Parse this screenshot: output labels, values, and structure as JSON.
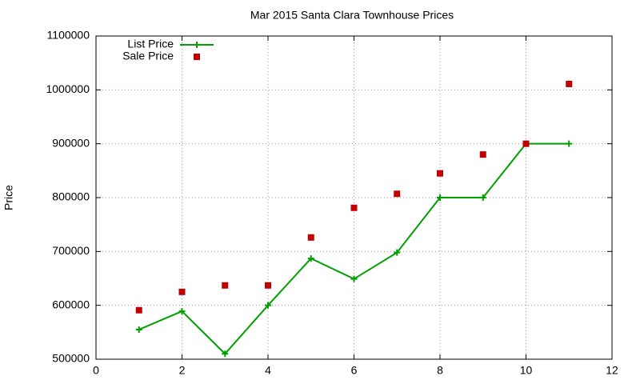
{
  "chart_data": {
    "type": "line",
    "title": "Mar 2015 Santa Clara Townhouse Prices",
    "y_label": "Price",
    "x": [
      1,
      2,
      3,
      4,
      5,
      6,
      7,
      8,
      9,
      10,
      11
    ],
    "series": [
      {
        "name": "List Price",
        "color": "#00a000",
        "mode": "linespoints",
        "marker": "plus",
        "values": [
          555000,
          589000,
          510000,
          600000,
          687000,
          649000,
          698000,
          800000,
          800000,
          900000,
          900000
        ]
      },
      {
        "name": "Sale Price",
        "color": "#c00000",
        "mode": "points",
        "marker": "square",
        "values": [
          591000,
          625000,
          637000,
          637000,
          726000,
          781000,
          807000,
          845000,
          880000,
          900000,
          1011000
        ]
      }
    ],
    "xlim": [
      0,
      12
    ],
    "xticks": [
      0,
      2,
      4,
      6,
      8,
      10,
      12
    ],
    "ylim": [
      500000,
      1100000
    ],
    "yticks": [
      500000,
      600000,
      700000,
      800000,
      900000,
      1000000,
      1100000
    ],
    "grid": true,
    "legend": "top-left"
  }
}
